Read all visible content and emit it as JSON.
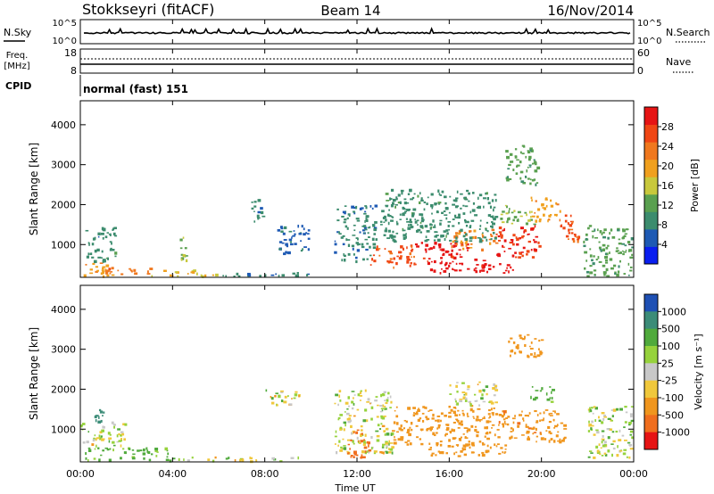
{
  "header": {
    "station": "Stokkseyri (fitACF)",
    "beam": "Beam 14",
    "date": "16/Nov/2014"
  },
  "nsky": {
    "label": "N.Sky",
    "ticks": [
      "10^5",
      "10^0"
    ],
    "right_ticks": [
      "10^5",
      "10^0"
    ],
    "right_label": "N.Search"
  },
  "freq": {
    "label_line1": "Freq.",
    "label_line2": "[MHz]",
    "ticks": [
      "18",
      "8"
    ],
    "right_ticks": [
      "60",
      "0"
    ],
    "right_label": "Nave"
  },
  "cpid": {
    "label": "CPID",
    "value": "normal (fast) 151"
  },
  "time_axis": {
    "ticks": [
      "00:00",
      "04:00",
      "08:00",
      "12:00",
      "16:00",
      "20:00",
      "00:00"
    ],
    "label": "Time UT"
  },
  "range_axis": {
    "label": "Slant Range [km]",
    "ticks": [
      "1000",
      "2000",
      "3000",
      "4000"
    ]
  },
  "power_scale": {
    "label": "Power [dB]",
    "ticks": [
      "4",
      "8",
      "12",
      "16",
      "20",
      "24",
      "28"
    ],
    "colors": [
      "#0a1ef0",
      "#1e5ab4",
      "#3c8c6e",
      "#5aa050",
      "#c8c83c",
      "#f0a01e",
      "#f0781e",
      "#f04614",
      "#e61414"
    ]
  },
  "velocity_scale": {
    "label": "Velocity [m s⁻¹]",
    "ticks": [
      "1000",
      "500",
      "100",
      "25",
      "-25",
      "-100",
      "-500",
      "-1000"
    ],
    "colors": [
      "#1e50b4",
      "#3c8c78",
      "#50aa3c",
      "#96d23c",
      "#c8c8c8",
      "#f0c83c",
      "#f0961e",
      "#f06e1e",
      "#e61414"
    ]
  },
  "chart_data": [
    {
      "type": "heatmap",
      "title": "Power",
      "xlabel": "Time UT",
      "ylabel": "Slant Range [km]",
      "xlim": [
        "00:00",
        "24:00"
      ],
      "ylim": [
        180,
        4600
      ],
      "colorbar_label": "Power [dB]",
      "colorbar_range": [
        0,
        32
      ],
      "blobs": [
        {
          "t0": 0.1,
          "t1": 1.5,
          "r0": 230,
          "r1": 600,
          "value": 20
        },
        {
          "t0": 0.2,
          "t1": 1.5,
          "r0": 600,
          "r1": 1500,
          "value": 9
        },
        {
          "t0": 1.0,
          "t1": 3.0,
          "r0": 250,
          "r1": 450,
          "value": 24
        },
        {
          "t0": 3.0,
          "t1": 6.0,
          "r0": 230,
          "r1": 380,
          "value": 18
        },
        {
          "t0": 4.3,
          "t1": 4.7,
          "r0": 500,
          "r1": 1200,
          "value": 14
        },
        {
          "t0": 6.0,
          "t1": 11.0,
          "r0": 220,
          "r1": 320,
          "value": 8
        },
        {
          "t0": 7.3,
          "t1": 7.9,
          "r0": 1600,
          "r1": 2200,
          "value": 8
        },
        {
          "t0": 8.5,
          "t1": 10.0,
          "r0": 800,
          "r1": 1500,
          "value": 6
        },
        {
          "t0": 11.0,
          "t1": 12.8,
          "r0": 600,
          "r1": 2000,
          "value": 8
        },
        {
          "t0": 12.5,
          "t1": 14.5,
          "r0": 450,
          "r1": 1000,
          "value": 26
        },
        {
          "t0": 14.5,
          "t1": 16.8,
          "r0": 650,
          "r1": 1100,
          "value": 30
        },
        {
          "t0": 15.0,
          "t1": 18.8,
          "r0": 300,
          "r1": 650,
          "value": 30
        },
        {
          "t0": 16.0,
          "t1": 18.0,
          "r0": 900,
          "r1": 1400,
          "value": 22
        },
        {
          "t0": 13.0,
          "t1": 18.0,
          "r0": 1100,
          "r1": 2400,
          "value": 9
        },
        {
          "t0": 18.0,
          "t1": 20.0,
          "r0": 700,
          "r1": 1500,
          "value": 28
        },
        {
          "t0": 18.2,
          "t1": 19.7,
          "r0": 1500,
          "r1": 2000,
          "value": 14
        },
        {
          "t0": 18.4,
          "t1": 19.8,
          "r0": 2500,
          "r1": 3500,
          "value": 12
        },
        {
          "t0": 19.5,
          "t1": 20.8,
          "r0": 1600,
          "r1": 2200,
          "value": 20
        },
        {
          "t0": 20.8,
          "t1": 21.6,
          "r0": 1000,
          "r1": 1800,
          "value": 26
        },
        {
          "t0": 21.8,
          "t1": 23.9,
          "r0": 230,
          "r1": 1500,
          "value": 12
        }
      ]
    },
    {
      "type": "heatmap",
      "title": "Velocity",
      "xlabel": "Time UT",
      "ylabel": "Slant Range [km]",
      "xlim": [
        "00:00",
        "24:00"
      ],
      "ylim": [
        180,
        4600
      ],
      "colorbar_label": "Velocity [m s⁻¹]",
      "colorbar_range": [
        -1000,
        1000
      ],
      "blobs": [
        {
          "t0": 0.0,
          "t1": 2.0,
          "r0": 600,
          "r1": 1200,
          "value": 10
        },
        {
          "t0": 0.2,
          "t1": 4.0,
          "r0": 230,
          "r1": 550,
          "value": 150
        },
        {
          "t0": 0.6,
          "t1": 1.0,
          "r0": 1000,
          "r1": 1600,
          "value": 800
        },
        {
          "t0": 4.0,
          "t1": 10.0,
          "r0": 220,
          "r1": 320,
          "value": 0
        },
        {
          "t0": 8.0,
          "t1": 9.5,
          "r0": 1600,
          "r1": 2000,
          "value": 0
        },
        {
          "t0": 11.0,
          "t1": 13.5,
          "r0": 400,
          "r1": 2000,
          "value": 0
        },
        {
          "t0": 11.5,
          "t1": 12.5,
          "r0": 300,
          "r1": 1000,
          "value": -700
        },
        {
          "t0": 13.5,
          "t1": 18.0,
          "r0": 600,
          "r1": 1600,
          "value": -300
        },
        {
          "t0": 15.0,
          "t1": 18.5,
          "r0": 300,
          "r1": 650,
          "value": -300
        },
        {
          "t0": 16.0,
          "t1": 18.0,
          "r0": 1600,
          "r1": 2200,
          "value": 0
        },
        {
          "t0": 18.0,
          "t1": 21.0,
          "r0": 700,
          "r1": 1500,
          "value": -400
        },
        {
          "t0": 18.5,
          "t1": 20.0,
          "r0": 2800,
          "r1": 3400,
          "value": -300
        },
        {
          "t0": 19.5,
          "t1": 20.5,
          "r0": 1700,
          "r1": 2100,
          "value": 200
        },
        {
          "t0": 22.0,
          "t1": 23.9,
          "r0": 300,
          "r1": 1600,
          "value": 30
        }
      ]
    }
  ]
}
